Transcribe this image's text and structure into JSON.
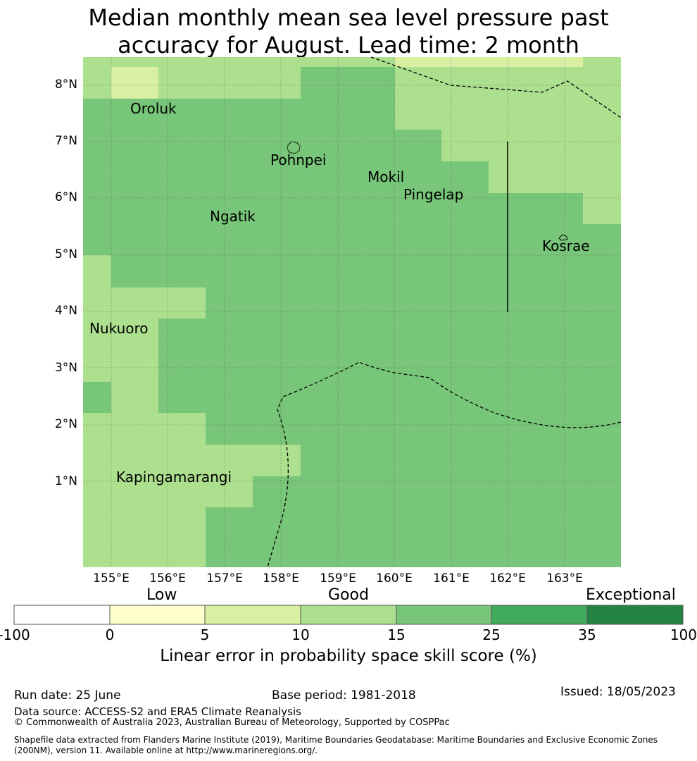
{
  "title_line1": "Median monthly mean sea level pressure past",
  "title_line2": "accuracy for August. Lead time: 2 month",
  "colors": {
    "skill_10_15": "#acdf8e",
    "skill_15_25": "#78c679",
    "skill_5_10": "#d9f0a3",
    "skill_0_5": "#ffffcc",
    "skill_25_35": "#41ab5d",
    "skill_35_100": "#238443",
    "skill_neg": "#ffffff"
  },
  "lat_labels": [
    "8°N",
    "7°N",
    "6°N",
    "5°N",
    "4°N",
    "3°N",
    "2°N",
    "1°N"
  ],
  "lon_labels": [
    "155°E",
    "156°E",
    "157°E",
    "158°E",
    "159°E",
    "160°E",
    "161°E",
    "162°E",
    "163°E"
  ],
  "places": [
    {
      "name": "Oroluk"
    },
    {
      "name": "Pohnpei"
    },
    {
      "name": "Mokil"
    },
    {
      "name": "Pingelap"
    },
    {
      "name": "Ngatik"
    },
    {
      "name": "Kosrae"
    },
    {
      "name": "Nukuoro"
    },
    {
      "name": "Kapingamarangi"
    }
  ],
  "colorbar": {
    "categories": [
      "Low",
      "Good",
      "Exceptional"
    ],
    "ticks": [
      "-100",
      "0",
      "5",
      "10",
      "15",
      "25",
      "35",
      "100"
    ],
    "title": "Linear error in probability space skill score (%)"
  },
  "footer": {
    "run_date": "Run date: 25 June",
    "base_period": "Base period: 1981-2018",
    "issued": "Issued: 18/05/2023",
    "data_source": "Data source: ACCESS-S2 and ERA5 Climate Reanalysis",
    "copyright": "© Commonwealth of Australia 2023, Australian Bureau of Meteorology, Supported by COSPPac",
    "shapefile": "Shapefile data extracted from Flanders Marine Institute (2019), Maritime Boundaries Geodatabase: Maritime Boundaries and Exclusive Economic Zones (200NM), version 11. Available online at http://www.marineregions.org/."
  }
}
